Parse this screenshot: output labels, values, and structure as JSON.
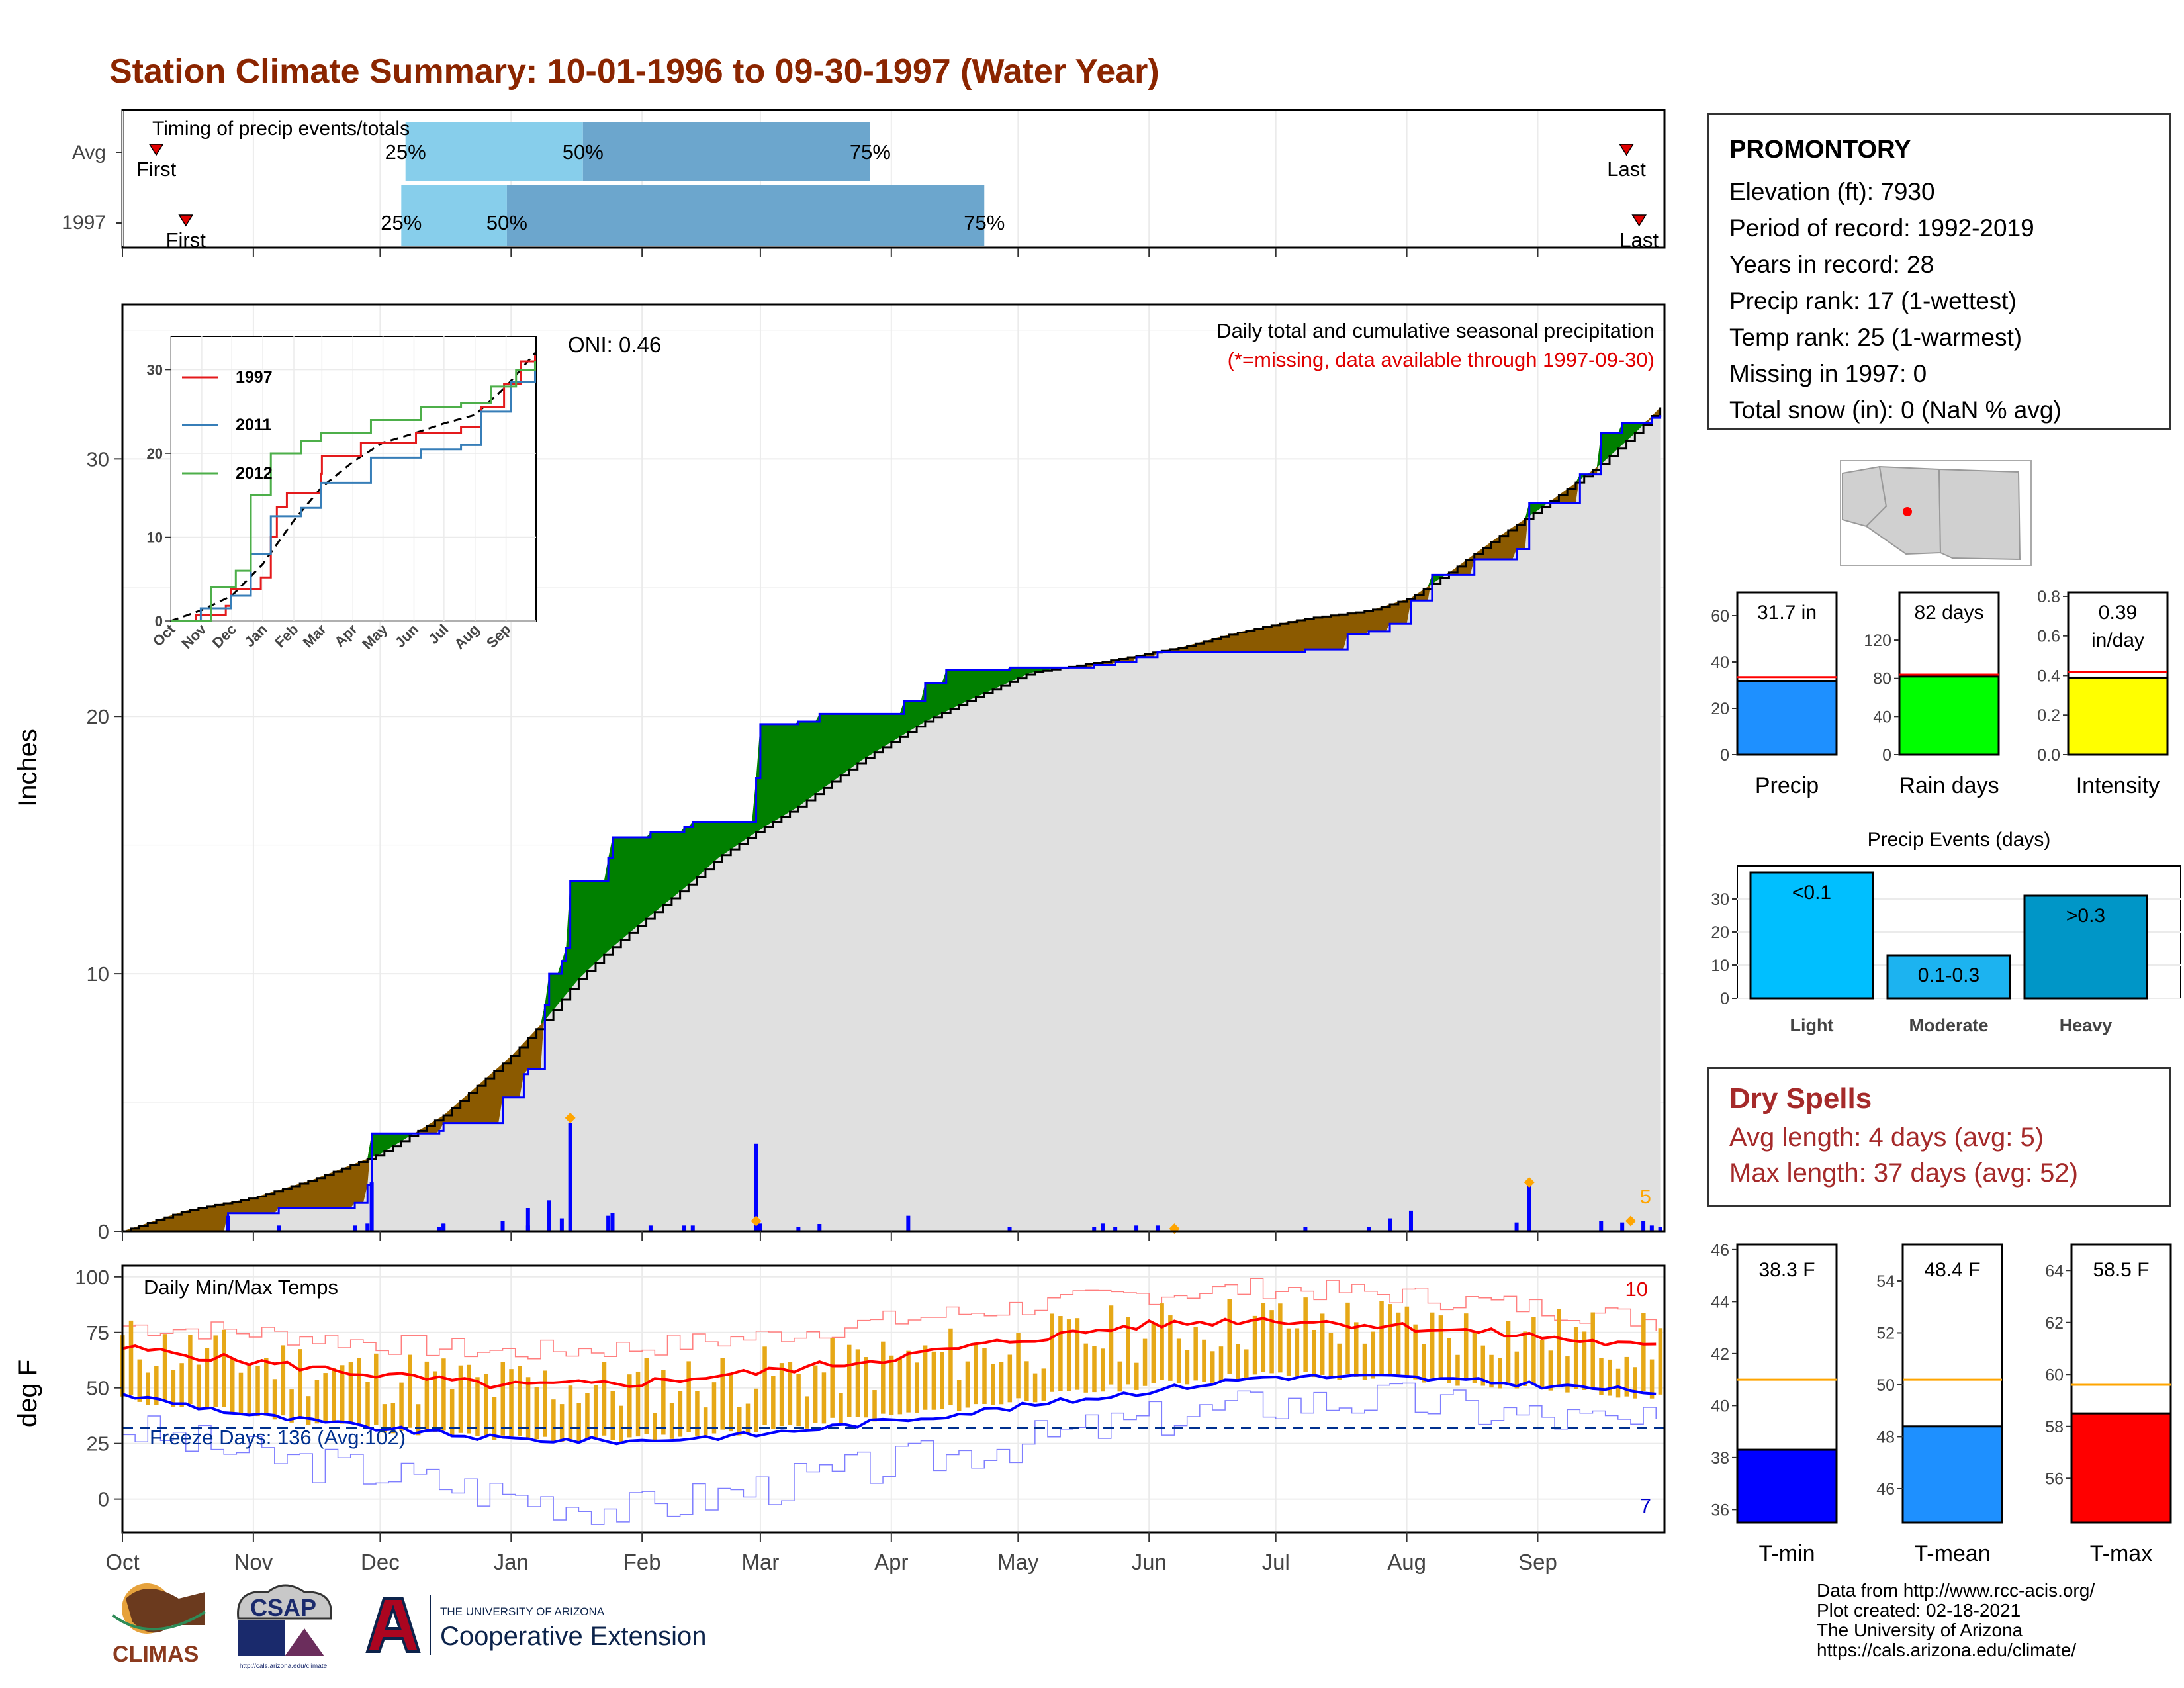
{
  "title": "Station Climate Summary: 10-01-1996 to 09-30-1997 (Water Year)",
  "timing": {
    "label": "Timing of precip events/totals",
    "rows": [
      {
        "name": "Avg",
        "first_label": "First",
        "last_label": "Last",
        "first_day": 8,
        "last_day": 356,
        "p25": 67,
        "p50": 109,
        "p75": 177
      },
      {
        "name": "1997",
        "first_label": "First",
        "last_label": "Last",
        "first_day": 15,
        "last_day": 359,
        "p25": 66,
        "p50": 91,
        "p75": 204
      }
    ],
    "pct_labels": [
      "25%",
      "50%",
      "75%"
    ]
  },
  "main": {
    "ylabel": "Inches",
    "yticks": [
      "0",
      "10",
      "20",
      "30"
    ],
    "months": [
      "Oct",
      "Nov",
      "Dec",
      "Jan",
      "Feb",
      "Mar",
      "Apr",
      "May",
      "Jun",
      "Jul",
      "Aug",
      "Sep"
    ],
    "caption1": "Daily total and cumulative seasonal precipitation",
    "caption2": "(*=missing, data available through 1997-09-30)",
    "oni": "ONI: 0.46",
    "corner_count": "5",
    "chart_data": {
      "type": "area",
      "x_unit": "day of water year",
      "ylim": [
        0,
        36
      ],
      "avg_cumulative": [
        [
          0,
          0
        ],
        [
          15,
          0.8
        ],
        [
          31,
          1.3
        ],
        [
          45,
          2.0
        ],
        [
          61,
          3.0
        ],
        [
          76,
          4.5
        ],
        [
          92,
          6.8
        ],
        [
          100,
          8.2
        ],
        [
          108,
          9.8
        ],
        [
          115,
          10.9
        ],
        [
          123,
          12.0
        ],
        [
          135,
          13.6
        ],
        [
          141,
          14.5
        ],
        [
          150,
          15.5
        ],
        [
          160,
          16.5
        ],
        [
          175,
          18.3
        ],
        [
          190,
          19.8
        ],
        [
          200,
          20.6
        ],
        [
          215,
          21.7
        ],
        [
          235,
          22.2
        ],
        [
          251,
          22.7
        ],
        [
          265,
          23.3
        ],
        [
          280,
          23.8
        ],
        [
          295,
          24.1
        ],
        [
          305,
          24.6
        ],
        [
          315,
          25.7
        ],
        [
          325,
          26.9
        ],
        [
          335,
          28.0
        ],
        [
          345,
          29.2
        ],
        [
          350,
          29.8
        ],
        [
          358,
          31.0
        ],
        [
          364,
          32.0
        ]
      ],
      "cumulative_1997": [
        [
          0,
          0
        ],
        [
          24,
          0
        ],
        [
          25,
          0.7
        ],
        [
          36,
          0.7
        ],
        [
          37,
          0.9
        ],
        [
          55,
          1.1
        ],
        [
          58,
          1.8
        ],
        [
          59,
          3.8
        ],
        [
          75,
          3.9
        ],
        [
          76,
          4.2
        ],
        [
          90,
          5.2
        ],
        [
          95,
          6.1
        ],
        [
          96,
          6.3
        ],
        [
          100,
          8.8
        ],
        [
          101,
          10.0
        ],
        [
          104,
          10.5
        ],
        [
          105,
          11.0
        ],
        [
          106,
          13.6
        ],
        [
          115,
          14.5
        ],
        [
          116,
          15.3
        ],
        [
          125,
          15.5
        ],
        [
          133,
          15.7
        ],
        [
          135,
          15.9
        ],
        [
          149,
          15.9
        ],
        [
          150,
          17.6
        ],
        [
          151,
          19.7
        ],
        [
          159,
          19.7
        ],
        [
          160,
          19.8
        ],
        [
          165,
          20.1
        ],
        [
          185,
          20.6
        ],
        [
          190,
          21.3
        ],
        [
          195,
          21.8
        ],
        [
          210,
          21.9
        ],
        [
          230,
          22.0
        ],
        [
          235,
          22.1
        ],
        [
          240,
          22.3
        ],
        [
          245,
          22.5
        ],
        [
          280,
          22.6
        ],
        [
          290,
          23.2
        ],
        [
          295,
          23.3
        ],
        [
          300,
          23.6
        ],
        [
          305,
          24.5
        ],
        [
          310,
          25.5
        ],
        [
          320,
          26.1
        ],
        [
          330,
          26.5
        ],
        [
          333,
          28.3
        ],
        [
          345,
          29.4
        ],
        [
          350,
          31.0
        ],
        [
          355,
          31.4
        ],
        [
          362,
          31.6
        ],
        [
          364,
          31.7
        ]
      ],
      "daily_spikes": [
        [
          25,
          0.6
        ],
        [
          37,
          0.2
        ],
        [
          58,
          0.3
        ],
        [
          59,
          1.9
        ],
        [
          76,
          0.3
        ],
        [
          90,
          0.4
        ],
        [
          96,
          0.9
        ],
        [
          101,
          1.2
        ],
        [
          104,
          0.5
        ],
        [
          106,
          4.2
        ],
        [
          115,
          0.6
        ],
        [
          116,
          0.7
        ],
        [
          150,
          3.4
        ],
        [
          151,
          0.3
        ],
        [
          186,
          0.6
        ],
        [
          232,
          0.3
        ],
        [
          300,
          0.5
        ],
        [
          305,
          0.8
        ],
        [
          333,
          1.8
        ],
        [
          350,
          0.4
        ],
        [
          360,
          0.4
        ]
      ],
      "spike_markers": [
        [
          106,
          4.4
        ],
        [
          150,
          0.4
        ],
        [
          249,
          0.1
        ],
        [
          333,
          1.9
        ],
        [
          357,
          0.4
        ]
      ]
    },
    "inset": {
      "legend": [
        "1997",
        "2011",
        "2012"
      ],
      "colors": [
        "#e41a1c",
        "#377eb8",
        "#4daf4a"
      ],
      "yticks": [
        "0",
        "10",
        "20",
        "30"
      ],
      "months": [
        "Oct",
        "Nov",
        "Dec",
        "Jan",
        "Feb",
        "Mar",
        "Apr",
        "May",
        "Jun",
        "Jul",
        "Aug",
        "Sep"
      ],
      "chart_data": {
        "type": "line",
        "series": [
          {
            "name": "1997",
            "values": [
              [
                0,
                0
              ],
              [
                25,
                0.7
              ],
              [
                55,
                1.8
              ],
              [
                60,
                3.8
              ],
              [
                90,
                5.2
              ],
              [
                100,
                10
              ],
              [
                106,
                13.6
              ],
              [
                116,
                15.3
              ],
              [
                150,
                17.6
              ],
              [
                151,
                19.7
              ],
              [
                190,
                21.3
              ],
              [
                245,
                22.5
              ],
              [
                290,
                23.2
              ],
              [
                310,
                25.5
              ],
              [
                333,
                28.3
              ],
              [
                350,
                31.0
              ],
              [
                364,
                31.7
              ]
            ]
          },
          {
            "name": "2011",
            "values": [
              [
                0,
                0
              ],
              [
                30,
                1.5
              ],
              [
                60,
                3.0
              ],
              [
                80,
                8.0
              ],
              [
                100,
                12.5
              ],
              [
                130,
                13.5
              ],
              [
                150,
                16.5
              ],
              [
                200,
                19.5
              ],
              [
                250,
                20.5
              ],
              [
                290,
                21.0
              ],
              [
                310,
                25.0
              ],
              [
                340,
                28.5
              ],
              [
                364,
                30.8
              ]
            ]
          },
          {
            "name": "2012",
            "values": [
              [
                0,
                0
              ],
              [
                40,
                4.0
              ],
              [
                65,
                6.0
              ],
              [
                80,
                15.0
              ],
              [
                100,
                20.0
              ],
              [
                130,
                21.5
              ],
              [
                150,
                22.5
              ],
              [
                200,
                24.0
              ],
              [
                250,
                25.5
              ],
              [
                290,
                26.0
              ],
              [
                320,
                28.0
              ],
              [
                345,
                30.0
              ],
              [
                364,
                31.0
              ]
            ]
          },
          {
            "name": "avg",
            "values": [
              [
                0,
                0
              ],
              [
                31,
                1.3
              ],
              [
                61,
                3.0
              ],
              [
                92,
                6.8
              ],
              [
                123,
                12.0
              ],
              [
                151,
                16.0
              ],
              [
                182,
                19.0
              ],
              [
                212,
                21.3
              ],
              [
                243,
                22.4
              ],
              [
                273,
                23.6
              ],
              [
                304,
                24.6
              ],
              [
                335,
                28.0
              ],
              [
                364,
                32.0
              ]
            ]
          }
        ]
      }
    }
  },
  "temps": {
    "ylabel": "deg F",
    "label": "Daily Min/Max Temps",
    "freeze": "Freeze Days: 136 (Avg:102)",
    "max_count": "10",
    "min_count": "7",
    "yticks": [
      "0",
      "25",
      "50",
      "75",
      "100"
    ],
    "months": [
      "Oct",
      "Nov",
      "Dec",
      "Jan",
      "Feb",
      "Mar",
      "Apr",
      "May",
      "Jun",
      "Jul",
      "Aug",
      "Sep"
    ],
    "chart_data": {
      "type": "line",
      "ylim": [
        -15,
        105
      ],
      "freeze_line": 32,
      "avg_max": [
        [
          0,
          68
        ],
        [
          30,
          62
        ],
        [
          60,
          56
        ],
        [
          90,
          51
        ],
        [
          120,
          52
        ],
        [
          150,
          57
        ],
        [
          180,
          63
        ],
        [
          210,
          71
        ],
        [
          240,
          78
        ],
        [
          270,
          81
        ],
        [
          300,
          78
        ],
        [
          330,
          74
        ],
        [
          364,
          68
        ]
      ],
      "avg_min": [
        [
          0,
          47
        ],
        [
          30,
          38
        ],
        [
          60,
          32
        ],
        [
          90,
          27
        ],
        [
          120,
          26
        ],
        [
          150,
          29
        ],
        [
          180,
          35
        ],
        [
          210,
          41
        ],
        [
          240,
          48
        ],
        [
          270,
          55
        ],
        [
          300,
          55
        ],
        [
          330,
          52
        ],
        [
          364,
          48
        ]
      ],
      "record_max": [
        [
          0,
          78
        ],
        [
          30,
          75
        ],
        [
          60,
          70
        ],
        [
          90,
          66
        ],
        [
          120,
          68
        ],
        [
          150,
          73
        ],
        [
          180,
          80
        ],
        [
          210,
          86
        ],
        [
          240,
          92
        ],
        [
          270,
          95
        ],
        [
          300,
          92
        ],
        [
          330,
          87
        ],
        [
          364,
          80
        ]
      ],
      "record_min": [
        [
          0,
          32
        ],
        [
          30,
          20
        ],
        [
          60,
          12
        ],
        [
          90,
          2
        ],
        [
          120,
          -5
        ],
        [
          150,
          5
        ],
        [
          180,
          15
        ],
        [
          210,
          25
        ],
        [
          240,
          35
        ],
        [
          270,
          43
        ],
        [
          300,
          45
        ],
        [
          330,
          38
        ],
        [
          364,
          32
        ]
      ]
    }
  },
  "station": {
    "name": "PROMONTORY",
    "lines": [
      "Elevation (ft): 7930",
      "Period of record: 1992-2019",
      "Years in record: 28",
      "Precip rank: 17 (1-wettest)",
      "Temp rank: 25 (1-warmest)",
      "Missing in 1997: 0",
      "Total snow (in): 0 (NaN % avg)"
    ]
  },
  "stat_bars": {
    "chart_data": [
      {
        "type": "bar",
        "label": "Precip",
        "value_label": "31.7 in",
        "value": 31.7,
        "avg": 33.5,
        "ylim": [
          0,
          70
        ],
        "ticks": [
          "0",
          "20",
          "40",
          "60"
        ],
        "color": "#1e90ff"
      },
      {
        "type": "bar",
        "label": "Rain days",
        "value_label": "82 days",
        "value": 82,
        "avg": 84,
        "ylim": [
          0,
          170
        ],
        "ticks": [
          "0",
          "40",
          "80",
          "120"
        ],
        "color": "#00ff00"
      },
      {
        "type": "bar",
        "label": "Intensity",
        "value_label": "0.39 in/day",
        "value": 0.39,
        "avg": 0.42,
        "ylim": [
          0,
          0.82
        ],
        "ticks": [
          "0.0",
          "0.2",
          "0.4",
          "0.6",
          "0.8"
        ],
        "color": "#ffff00"
      }
    ]
  },
  "precip_events": {
    "title": "Precip Events (days)",
    "chart_data": {
      "type": "bar",
      "categories": [
        "Light",
        "Moderate",
        "Heavy"
      ],
      "bar_labels": [
        "<0.1",
        "0.1-0.3",
        ">0.3"
      ],
      "values": [
        38,
        13,
        31
      ],
      "ylim": [
        0,
        40
      ],
      "yticks": [
        "0",
        "10",
        "20",
        "30"
      ],
      "colors": [
        "#00bfff",
        "#1cb3f0",
        "#0096c7"
      ]
    }
  },
  "dry_spells": {
    "title": "Dry Spells",
    "avg": "Avg length: 4 days (avg: 5)",
    "max": "Max length: 37 days (avg: 52)"
  },
  "temp_bars": {
    "chart_data": [
      {
        "type": "bar",
        "label": "T-min",
        "value_label": "38.3 F",
        "value": 38.3,
        "avg": 41.0,
        "ylim": [
          35.5,
          46.2
        ],
        "ticks": [
          "36",
          "38",
          "40",
          "42",
          "44",
          "46"
        ],
        "color": "#0000ff"
      },
      {
        "type": "bar",
        "label": "T-mean",
        "value_label": "48.4 F",
        "value": 48.4,
        "avg": 50.2,
        "ylim": [
          44.7,
          55.4
        ],
        "ticks": [
          "46",
          "48",
          "50",
          "52",
          "54"
        ],
        "color": "#1e90ff"
      },
      {
        "type": "bar",
        "label": "T-max",
        "value_label": "58.5 F",
        "value": 58.5,
        "avg": 59.6,
        "ylim": [
          54.3,
          65.0
        ],
        "ticks": [
          "56",
          "58",
          "60",
          "62",
          "64"
        ],
        "color": "#ff0000"
      }
    ]
  },
  "logos": {
    "climas": "CLIMAS",
    "csap": "CSAP",
    "csap_url": "http://cals.arizona.edu/climate",
    "ua_top": "THE UNIVERSITY OF ARIZONA",
    "ua_bottom": "Cooperative Extension"
  },
  "credits": [
    "Data from http://www.rcc-acis.org/",
    "Plot created: 02-18-2021",
    "The University of Arizona",
    "https://cals.arizona.edu/climate/"
  ]
}
